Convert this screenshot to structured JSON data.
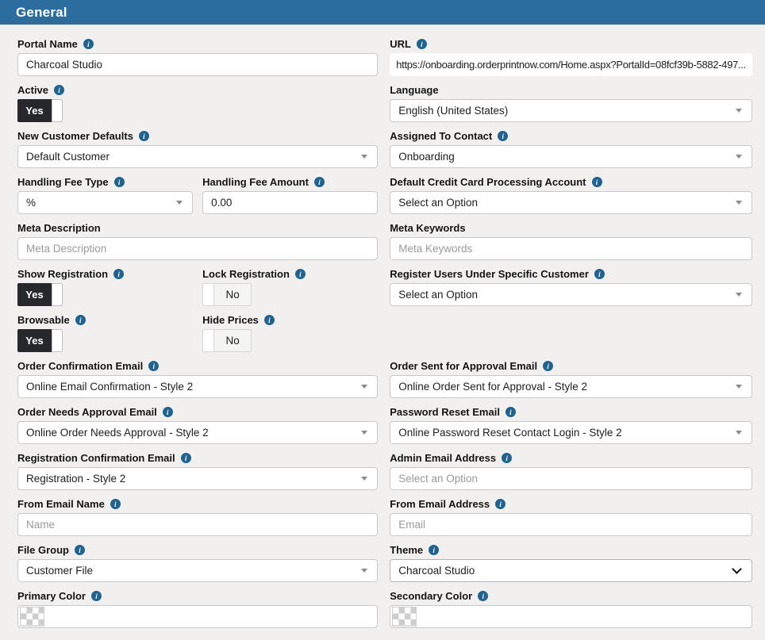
{
  "header": {
    "title": "General"
  },
  "icons": {
    "info_glyph": "i"
  },
  "colors": {
    "header_bg": "#2b6d9f",
    "info_icon_bg": "#21638f",
    "toggle_on_bg": "#26282b",
    "page_bg": "#f1f0ef"
  },
  "fields": {
    "portal_name": {
      "label": "Portal Name",
      "value": "Charcoal Studio"
    },
    "url": {
      "label": "URL",
      "value": "https://onboarding.orderprintnow.com/Home.aspx?PortalId=08fcf39b-5882-497..."
    },
    "active": {
      "label": "Active",
      "value": "Yes"
    },
    "language": {
      "label": "Language",
      "value": "English (United States)"
    },
    "new_customer_defaults": {
      "label": "New Customer Defaults",
      "value": "Default Customer"
    },
    "assigned_to_contact": {
      "label": "Assigned To Contact",
      "value": "Onboarding"
    },
    "handling_fee_type": {
      "label": "Handling Fee Type",
      "value": "%"
    },
    "handling_fee_amount": {
      "label": "Handling Fee Amount",
      "value": "0.00"
    },
    "default_credit_card_processing_account": {
      "label": "Default Credit Card Processing Account",
      "value": "Select an Option"
    },
    "meta_description": {
      "label": "Meta Description",
      "placeholder": "Meta Description"
    },
    "meta_keywords": {
      "label": "Meta Keywords",
      "placeholder": "Meta Keywords"
    },
    "show_registration": {
      "label": "Show Registration",
      "value": "Yes"
    },
    "lock_registration": {
      "label": "Lock Registration",
      "value": "No"
    },
    "register_users_under_specific_customer": {
      "label": "Register Users Under Specific Customer",
      "value": "Select an Option"
    },
    "browsable": {
      "label": "Browsable",
      "value": "Yes"
    },
    "hide_prices": {
      "label": "Hide Prices",
      "value": "No"
    },
    "order_confirmation_email": {
      "label": "Order Confirmation Email",
      "value": "Online Email Confirmation - Style 2"
    },
    "order_sent_for_approval_email": {
      "label": "Order Sent for Approval Email",
      "value": "Online Order Sent for Approval - Style 2"
    },
    "order_needs_approval_email": {
      "label": "Order Needs Approval Email",
      "value": "Online Order Needs Approval - Style 2"
    },
    "password_reset_email": {
      "label": "Password Reset Email",
      "value": "Online Password Reset Contact Login - Style 2"
    },
    "registration_confirmation_email": {
      "label": "Registration Confirmation Email",
      "value": "Registration - Style 2"
    },
    "admin_email_address": {
      "label": "Admin Email Address",
      "placeholder": "Select an Option"
    },
    "from_email_name": {
      "label": "From Email Name",
      "placeholder": "Name"
    },
    "from_email_address": {
      "label": "From Email Address",
      "placeholder": "Email"
    },
    "file_group": {
      "label": "File Group",
      "value": "Customer File"
    },
    "theme": {
      "label": "Theme",
      "value": "Charcoal Studio"
    },
    "primary_color": {
      "label": "Primary Color",
      "value": ""
    },
    "secondary_color": {
      "label": "Secondary Color",
      "value": ""
    }
  }
}
